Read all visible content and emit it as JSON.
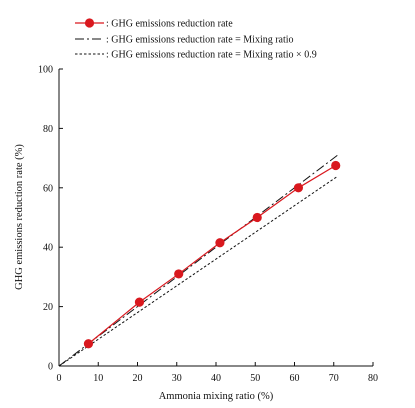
{
  "chart_data": {
    "type": "line",
    "title": "",
    "xlabel": "Ammonia mixing ratio  (%)",
    "ylabel": "GHG emissions reduction rate  (%)",
    "xlim": [
      0,
      80
    ],
    "ylim": [
      0,
      100
    ],
    "x_ticks": [
      0,
      10,
      20,
      30,
      40,
      50,
      60,
      70,
      80
    ],
    "y_ticks": [
      0,
      20,
      40,
      60,
      80,
      100
    ],
    "grid": false,
    "legend_position": "top-left",
    "series": [
      {
        "name": ": GHG emissions reduction rate",
        "style": "solid-with-markers",
        "color": "#d9181e",
        "x": [
          7.5,
          20.5,
          30.5,
          41.0,
          50.5,
          61.0,
          70.5
        ],
        "y": [
          7.5,
          21.5,
          31.0,
          41.5,
          50.0,
          60.0,
          67.5
        ]
      },
      {
        "name": ": GHG emissions reduction rate = Mixing ratio",
        "style": "dash-dot",
        "color": "#111111",
        "x": [
          0,
          71
        ],
        "y": [
          0,
          71
        ]
      },
      {
        "name": ": GHG emissions reduction rate = Mixing ratio × 0.9",
        "style": "dotted",
        "color": "#111111",
        "x": [
          0,
          71
        ],
        "y": [
          0,
          63.9
        ]
      }
    ]
  }
}
